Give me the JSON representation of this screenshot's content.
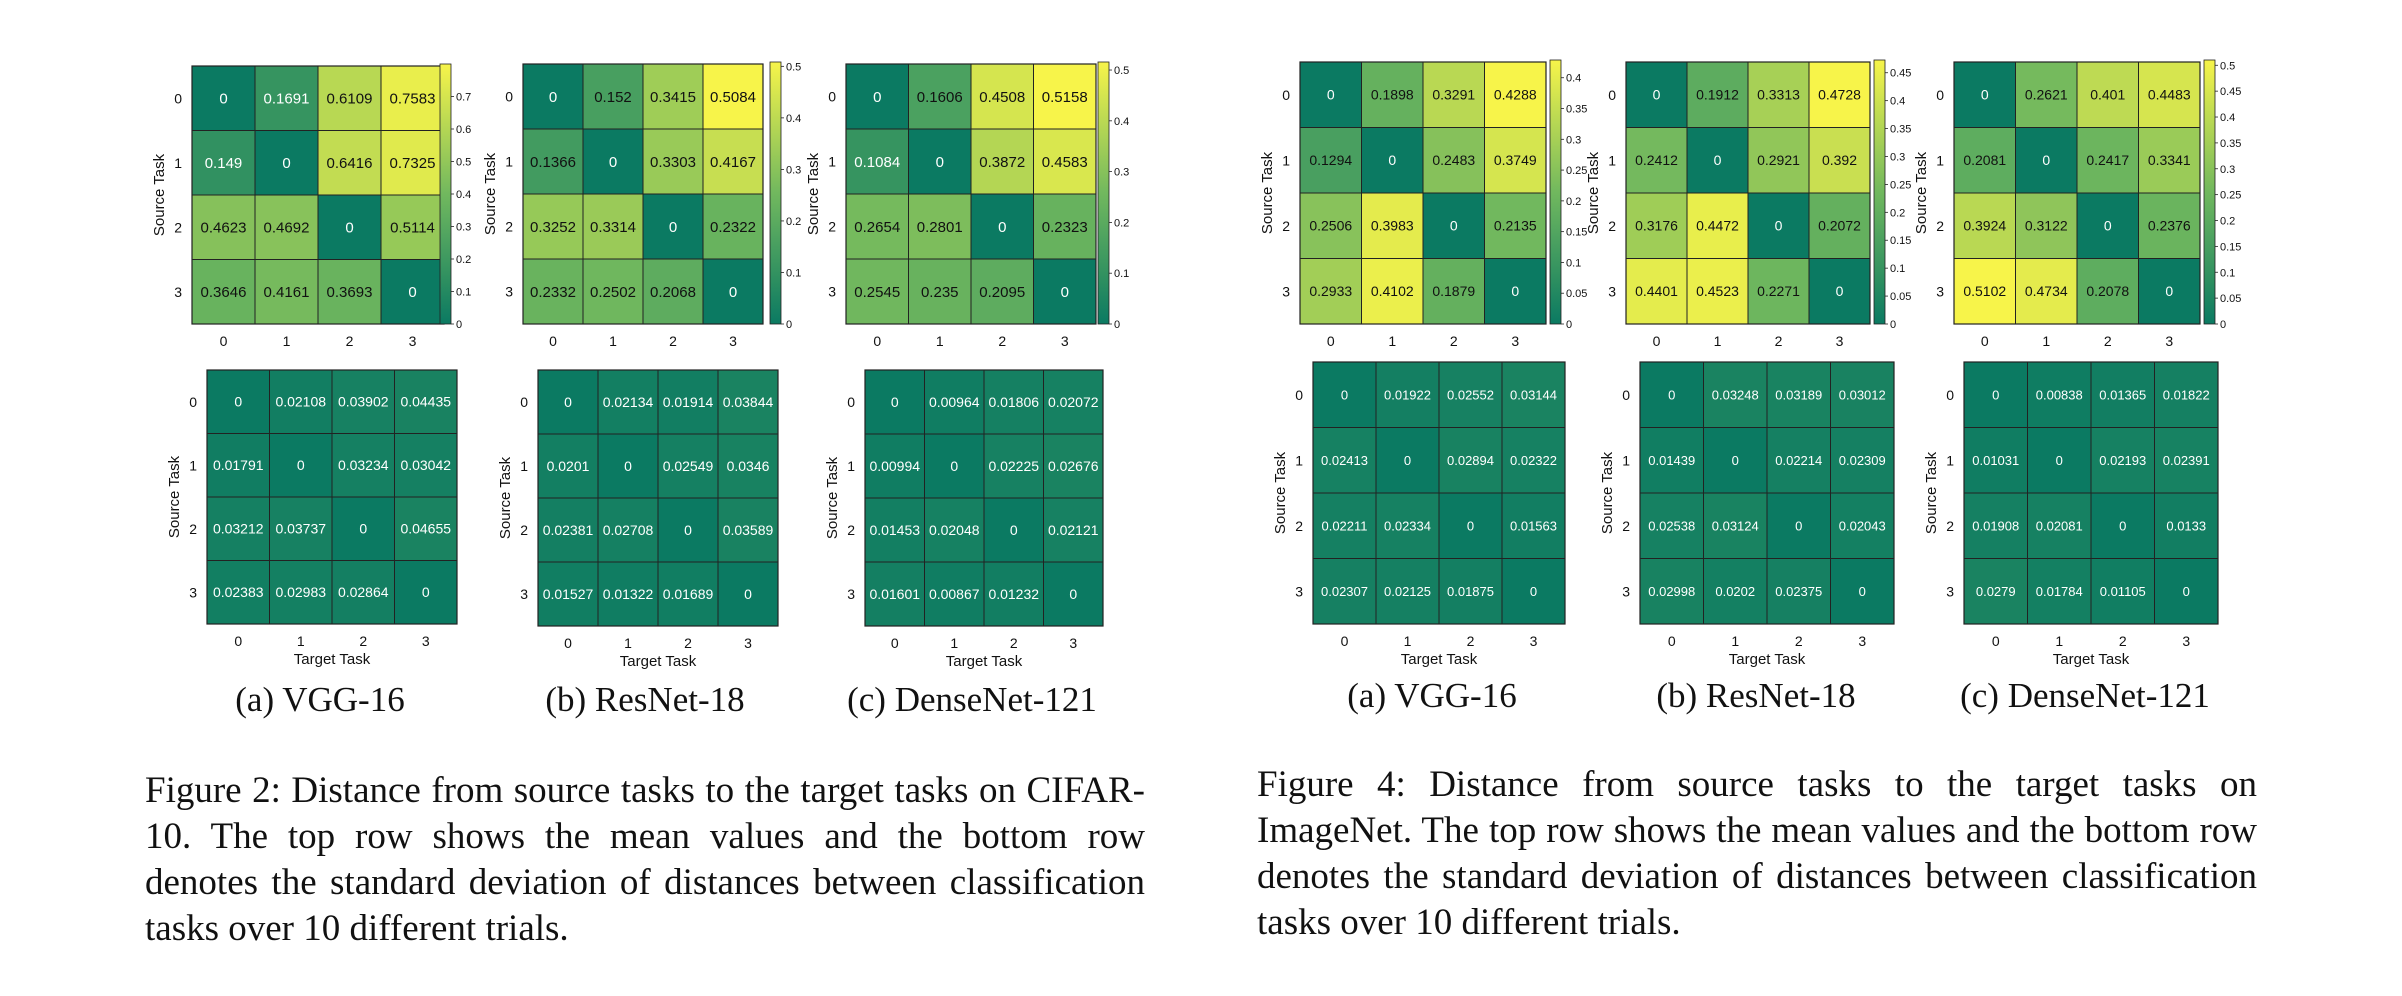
{
  "chart_data": [
    {
      "type": "heatmap",
      "figure": "cifar",
      "title": "",
      "xlabel": "",
      "ylabel": "Source Task",
      "categories": [
        "0",
        "1",
        "2",
        "3"
      ],
      "values": [
        [
          0,
          0.1691,
          0.6109,
          0.7583
        ],
        [
          0.149,
          0,
          0.6416,
          0.7325
        ],
        [
          0.4623,
          0.4692,
          0,
          0.5114
        ],
        [
          0.3646,
          0.4161,
          0.3693,
          0
        ]
      ],
      "colorbar": {
        "min": 0,
        "max": 0.8,
        "ticks": [
          "0",
          "0.1",
          "0.2",
          "0.3",
          "0.4",
          "0.5",
          "0.6",
          "0.7"
        ]
      }
    },
    {
      "type": "heatmap",
      "figure": "cifar",
      "title": "",
      "xlabel": "",
      "ylabel": "Source Task",
      "categories": [
        "0",
        "1",
        "2",
        "3"
      ],
      "values": [
        [
          0,
          0.152,
          0.3415,
          0.5084
        ],
        [
          0.1366,
          0,
          0.3303,
          0.4167
        ],
        [
          0.3252,
          0.3314,
          0,
          0.2322
        ],
        [
          0.2332,
          0.2502,
          0.2068,
          0
        ]
      ],
      "colorbar": {
        "min": 0,
        "max": 0.5084,
        "ticks": [
          "0",
          "0.1",
          "0.2",
          "0.3",
          "0.4",
          "0.5"
        ]
      }
    },
    {
      "type": "heatmap",
      "figure": "cifar",
      "title": "",
      "xlabel": "",
      "ylabel": "Source Task",
      "categories": [
        "0",
        "1",
        "2",
        "3"
      ],
      "values": [
        [
          0,
          0.1606,
          0.4508,
          0.5158
        ],
        [
          0.1084,
          0,
          0.3872,
          0.4583
        ],
        [
          0.2654,
          0.2801,
          0,
          0.2323
        ],
        [
          0.2545,
          0.235,
          0.2095,
          0
        ]
      ],
      "colorbar": {
        "min": 0,
        "max": 0.5158,
        "ticks": [
          "0",
          "0.1",
          "0.2",
          "0.3",
          "0.4",
          "0.5"
        ]
      }
    },
    {
      "type": "heatmap",
      "figure": "cifar",
      "title": "",
      "xlabel": "Target Task",
      "ylabel": "Source Task",
      "categories": [
        "0",
        "1",
        "2",
        "3"
      ],
      "values": [
        [
          0,
          0.02108,
          0.03902,
          0.04435
        ],
        [
          0.01791,
          0,
          0.03234,
          0.03042
        ],
        [
          0.03212,
          0.03737,
          0,
          0.04655
        ],
        [
          0.02383,
          0.02983,
          0.02864,
          0
        ]
      ]
    },
    {
      "type": "heatmap",
      "figure": "cifar",
      "title": "",
      "xlabel": "Target Task",
      "ylabel": "Source Task",
      "categories": [
        "0",
        "1",
        "2",
        "3"
      ],
      "values": [
        [
          0,
          0.02134,
          0.01914,
          0.03844
        ],
        [
          0.0201,
          0,
          0.02549,
          0.0346
        ],
        [
          0.02381,
          0.02708,
          0,
          0.03589
        ],
        [
          0.01527,
          0.01322,
          0.01689,
          0
        ]
      ]
    },
    {
      "type": "heatmap",
      "figure": "cifar",
      "title": "",
      "xlabel": "Target Task",
      "ylabel": "Source Task",
      "categories": [
        "0",
        "1",
        "2",
        "3"
      ],
      "values": [
        [
          0,
          0.00964,
          0.01806,
          0.02072
        ],
        [
          0.00994,
          0,
          0.02225,
          0.02676
        ],
        [
          0.01453,
          0.02048,
          0,
          0.02121
        ],
        [
          0.01601,
          0.00867,
          0.01232,
          0
        ]
      ]
    },
    {
      "type": "heatmap",
      "figure": "imagenet",
      "title": "",
      "xlabel": "",
      "ylabel": "Source Task",
      "categories": [
        "0",
        "1",
        "2",
        "3"
      ],
      "values": [
        [
          0,
          0.1898,
          0.3291,
          0.4288
        ],
        [
          0.1294,
          0,
          0.2483,
          0.3749
        ],
        [
          0.2506,
          0.3983,
          0,
          0.2135
        ],
        [
          0.2933,
          0.4102,
          0.1879,
          0
        ]
      ],
      "colorbar": {
        "min": 0,
        "max": 0.4288,
        "ticks": [
          "0",
          "0.05",
          "0.1",
          "0.15",
          "0.2",
          "0.25",
          "0.3",
          "0.35",
          "0.4"
        ]
      }
    },
    {
      "type": "heatmap",
      "figure": "imagenet",
      "title": "",
      "xlabel": "",
      "ylabel": "Source Task",
      "categories": [
        "0",
        "1",
        "2",
        "3"
      ],
      "values": [
        [
          0,
          0.1912,
          0.3313,
          0.4728
        ],
        [
          0.2412,
          0,
          0.2921,
          0.392
        ],
        [
          0.3176,
          0.4472,
          0,
          0.2072
        ],
        [
          0.4401,
          0.4523,
          0.2271,
          0
        ]
      ],
      "colorbar": {
        "min": 0,
        "max": 0.4728,
        "ticks": [
          "0",
          "0.05",
          "0.1",
          "0.15",
          "0.2",
          "0.25",
          "0.3",
          "0.35",
          "0.4",
          "0.45"
        ]
      }
    },
    {
      "type": "heatmap",
      "figure": "imagenet",
      "title": "",
      "xlabel": "",
      "ylabel": "Source Task",
      "categories": [
        "0",
        "1",
        "2",
        "3"
      ],
      "values": [
        [
          0,
          0.2621,
          0.401,
          0.4483
        ],
        [
          0.2081,
          0,
          0.2417,
          0.3341
        ],
        [
          0.3924,
          0.3122,
          0,
          0.2376
        ],
        [
          0.5102,
          0.4734,
          0.2078,
          0
        ]
      ],
      "colorbar": {
        "min": 0,
        "max": 0.5102,
        "ticks": [
          "0",
          "0.05",
          "0.1",
          "0.15",
          "0.2",
          "0.25",
          "0.3",
          "0.35",
          "0.4",
          "0.45",
          "0.5"
        ]
      }
    },
    {
      "type": "heatmap",
      "figure": "imagenet",
      "title": "",
      "xlabel": "Target Task",
      "ylabel": "Source Task",
      "categories": [
        "0",
        "1",
        "2",
        "3"
      ],
      "values": [
        [
          0,
          0.01922,
          0.02552,
          0.03144
        ],
        [
          0.02413,
          0,
          0.02894,
          0.02322
        ],
        [
          0.02211,
          0.02334,
          0,
          0.01563
        ],
        [
          0.02307,
          0.02125,
          0.01875,
          0
        ]
      ]
    },
    {
      "type": "heatmap",
      "figure": "imagenet",
      "title": "",
      "xlabel": "Target Task",
      "ylabel": "Source Task",
      "categories": [
        "0",
        "1",
        "2",
        "3"
      ],
      "values": [
        [
          0,
          0.03248,
          0.03189,
          0.03012
        ],
        [
          0.01439,
          0,
          0.02214,
          0.02309
        ],
        [
          0.02538,
          0.03124,
          0,
          0.02043
        ],
        [
          0.02998,
          0.0202,
          0.02375,
          0
        ]
      ]
    },
    {
      "type": "heatmap",
      "figure": "imagenet",
      "title": "",
      "xlabel": "Target Task",
      "ylabel": "Source Task",
      "categories": [
        "0",
        "1",
        "2",
        "3"
      ],
      "values": [
        [
          0,
          0.00838,
          0.01365,
          0.01822
        ],
        [
          0.01031,
          0,
          0.02193,
          0.02391
        ],
        [
          0.01908,
          0.02081,
          0,
          0.0133
        ],
        [
          0.0279,
          0.01784,
          0.01105,
          0
        ]
      ]
    }
  ],
  "colors": {
    "low": "#0b7a62",
    "mid": "#71b85e",
    "high": "#f7f44a",
    "grid": "#222222",
    "text_dark": "#111111",
    "text_light": "#ffffff"
  },
  "sublabels": {
    "cifar": [
      "(a) VGG-16",
      "(b) ResNet-18",
      "(c) DenseNet-121"
    ],
    "imagenet": [
      "(a) VGG-16",
      "(b) ResNet-18",
      "(c) DenseNet-121"
    ]
  },
  "captions": {
    "cifar": "Figure 2: Distance from source tasks to the target tasks on CIFAR-10. The top row shows the mean values and the bottom row denotes the standard deviation of distances between classification tasks over 10 different trials.",
    "imagenet": "Figure 4: Distance from source tasks to the target tasks on ImageNet. The top row shows the mean values and the bottom row denotes the standard deviation of distances between classification tasks over 10 different trials."
  }
}
